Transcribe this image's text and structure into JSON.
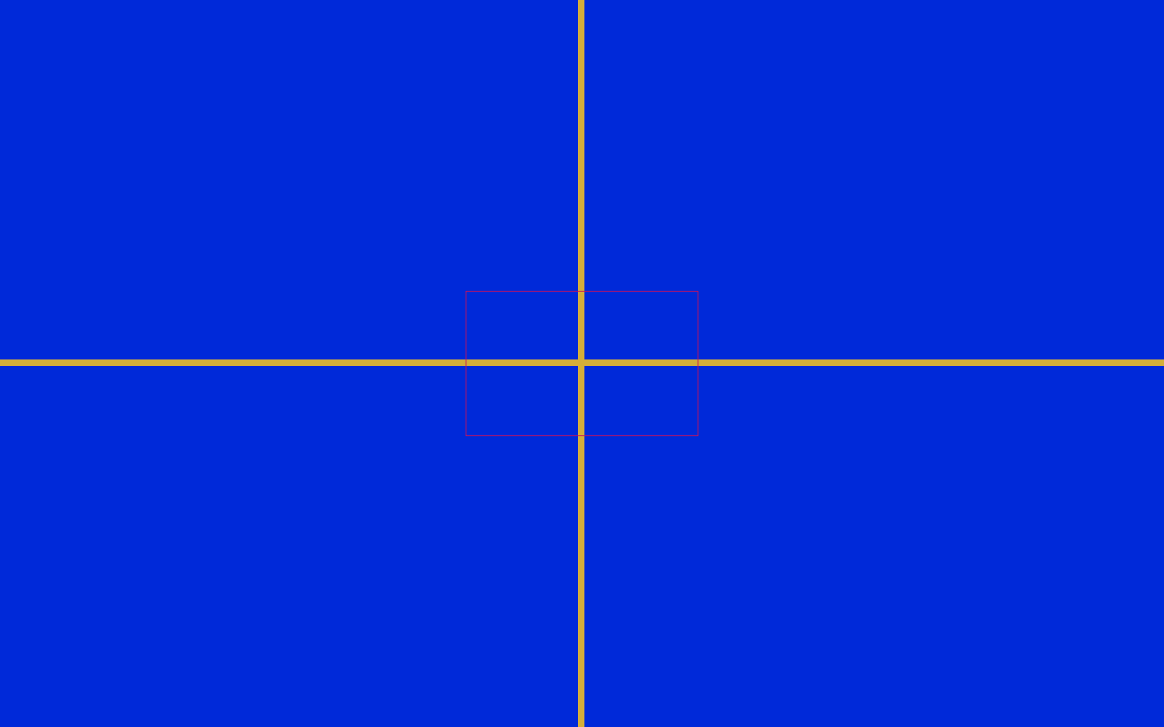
{
  "background_color": "#0029D9",
  "crosshair": {
    "color": "#D4AE3A"
  },
  "center_frame": {
    "border_color": "#C8105A"
  }
}
